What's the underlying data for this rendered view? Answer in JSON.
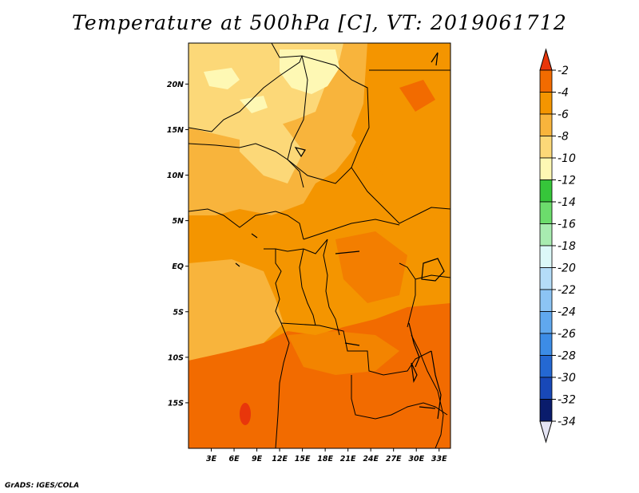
{
  "title": "Temperature at 500hPa [C], VT: 2019061712",
  "credit": "GrADS: IGES/COLA",
  "map": {
    "lon_range": [
      0,
      34.5
    ],
    "lat_range": [
      -20,
      24.5
    ],
    "lat_ticks": [
      {
        "value": 20,
        "label": "20N"
      },
      {
        "value": 15,
        "label": "15N"
      },
      {
        "value": 10,
        "label": "10N"
      },
      {
        "value": 5,
        "label": "5N"
      },
      {
        "value": 0,
        "label": "EQ"
      },
      {
        "value": -5,
        "label": "5S"
      },
      {
        "value": -10,
        "label": "10S"
      },
      {
        "value": -15,
        "label": "15S"
      }
    ],
    "lon_ticks": [
      {
        "value": 3,
        "label": "3E"
      },
      {
        "value": 6,
        "label": "6E"
      },
      {
        "value": 9,
        "label": "9E"
      },
      {
        "value": 12,
        "label": "12E"
      },
      {
        "value": 15,
        "label": "15E"
      },
      {
        "value": 18,
        "label": "18E"
      },
      {
        "value": 21,
        "label": "21E"
      },
      {
        "value": 24,
        "label": "24E"
      },
      {
        "value": 27,
        "label": "27E"
      },
      {
        "value": 30,
        "label": "30E"
      },
      {
        "value": 33,
        "label": "33E"
      }
    ]
  },
  "colorbar": {
    "labels": [
      "-2",
      "-4",
      "-6",
      "-8",
      "-10",
      "-12",
      "-14",
      "-16",
      "-18",
      "-20",
      "-22",
      "-24",
      "-26",
      "-28",
      "-30",
      "-32",
      "-34"
    ],
    "colors": [
      "#e8360b",
      "#f26b00",
      "#f49500",
      "#f8b43c",
      "#fcd878",
      "#fef8b4",
      "#36c63a",
      "#6cdc6c",
      "#a8ecb0",
      "#dcf8f8",
      "#b4dcf8",
      "#8cc4f4",
      "#60a8ee",
      "#3c8ce6",
      "#2468d2",
      "#1848b8",
      "#0a1c6c",
      "#e4e4f4"
    ]
  }
}
